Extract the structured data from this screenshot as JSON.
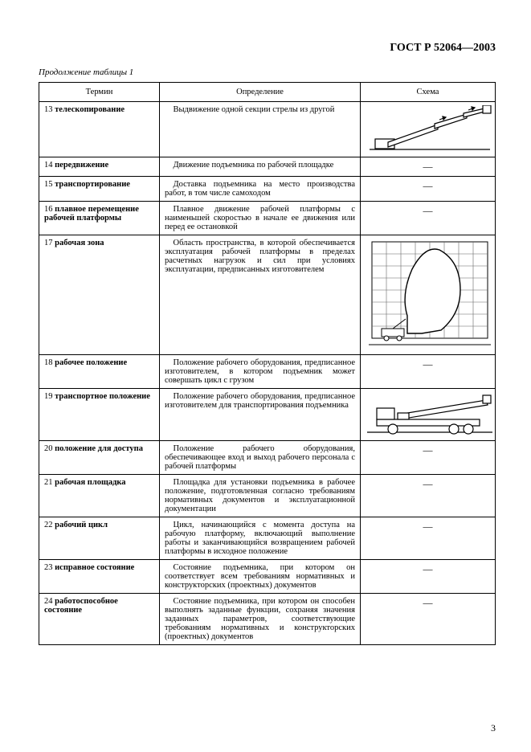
{
  "header": {
    "standard_code": "ГОСТ Р 52064—2003"
  },
  "caption": "Продолжение таблицы 1",
  "columns": {
    "term": "Термин",
    "definition": "Определение",
    "scheme": "Схема"
  },
  "rows": [
    {
      "num": "13",
      "term": "телескопирование",
      "def": "Выдвижение одной секции стрелы из другой",
      "scheme": "boom"
    },
    {
      "num": "14",
      "term": "передвижение",
      "def": "Движение подъемника по рабочей площадке",
      "scheme": "dash"
    },
    {
      "num": "15",
      "term": "транспортирование",
      "def": "Доставка подъемника на место производства работ, в том числе самоходом",
      "scheme": "dash"
    },
    {
      "num": "16",
      "term": "плавное перемещение рабочей платформы",
      "def": "Плавное движение рабочей платформы с наименьшей скоростью в начале ее движения или перед ее остановкой",
      "scheme": "dash"
    },
    {
      "num": "17",
      "term": "рабочая зона",
      "def": "Область пространства, в которой обеспечивается эксплуатация рабочей платформы в пределах расчетных нагрузок и сил при условиях эксплуатации, предписанных изготовителем",
      "scheme": "envelope"
    },
    {
      "num": "18",
      "term": "рабочее положение",
      "def": "Положение рабочего оборудования, предписанное изготовителем, в котором подъемник может совершать цикл с грузом",
      "scheme": "dash"
    },
    {
      "num": "19",
      "term": "транспортное положение",
      "def": "Положение рабочего оборудования, предписанное изготовителем для транспортирования подъемника",
      "scheme": "truck"
    },
    {
      "num": "20",
      "term": "положение для доступа",
      "def": "Положение рабочего оборудования, обеспечивающее вход и выход рабочего персонала с рабочей платформы",
      "scheme": "dash"
    },
    {
      "num": "21",
      "term": "рабочая площадка",
      "def": "Площадка для установки подъемника в рабочее положение, подготовленная согласно требованиям нормативных документов и эксплуатационной документации",
      "scheme": "dash"
    },
    {
      "num": "22",
      "term": "рабочий цикл",
      "def": "Цикл, начинающийся с момента доступа на рабочую платформу, включающий выполнение работы и заканчивающийся возвращением рабочей платформы в исходное положение",
      "scheme": "dash"
    },
    {
      "num": "23",
      "term": "исправное состояние",
      "def": "Состояние подъемника, при котором он соответствует всем требованиям нормативных и конструкторских (проектных) документов",
      "scheme": "dash"
    },
    {
      "num": "24",
      "term": "работоспособное состояние",
      "def": "Состояние подъемника, при котором он способен выполнять заданные функции, сохраняя значения заданных параметров, соответствующие требованиям нормативных и конструкторских (проектных) документов",
      "scheme": "dash"
    }
  ],
  "page_number": "3",
  "style": {
    "line_color": "#000000",
    "grid_color": "#666666",
    "envelope_fill": "#ffffff"
  }
}
